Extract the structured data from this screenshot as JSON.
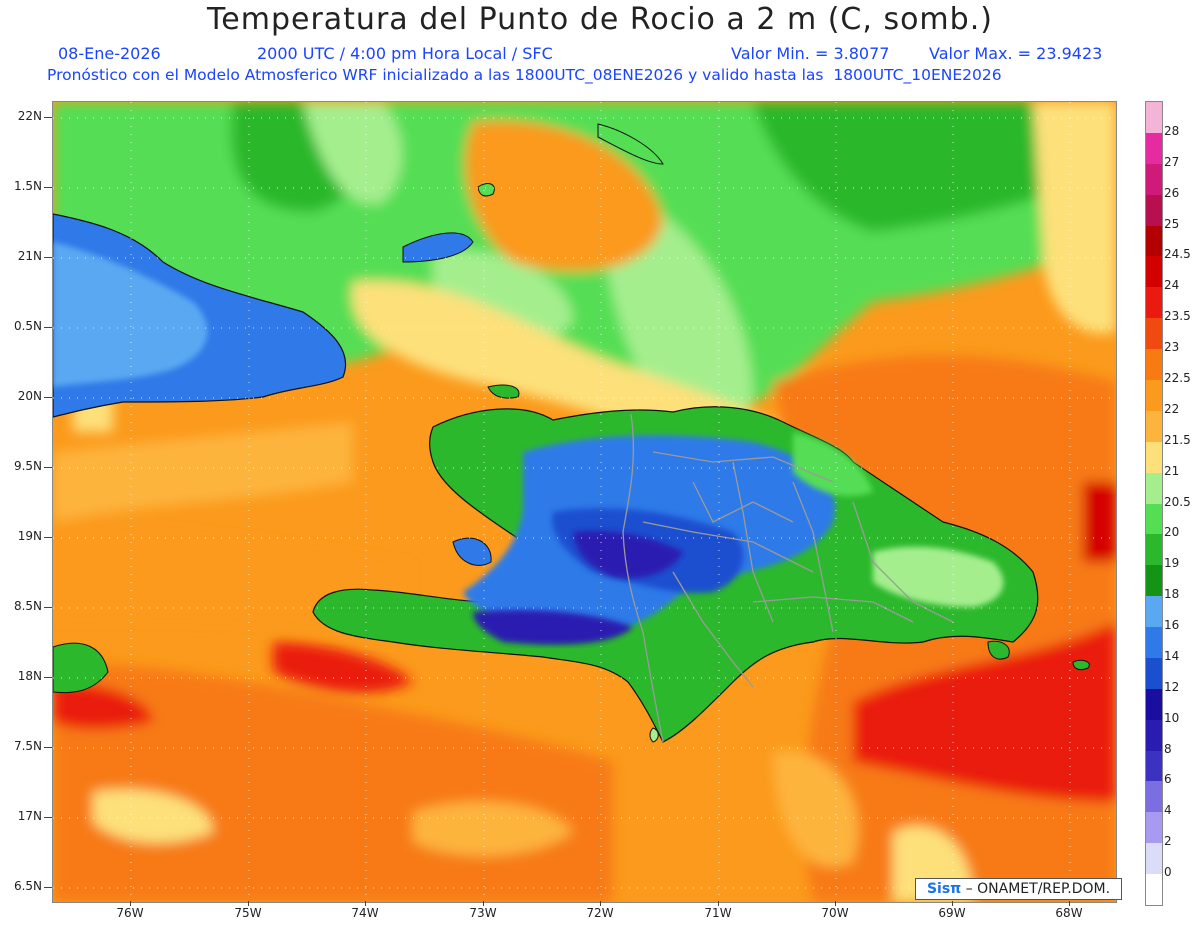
{
  "header": {
    "title": "Temperatura del Punto de Rocio a 2 m (C, somb.)",
    "date": "08-Ene-2026",
    "time_info": "2000 UTC / 4:00 pm Hora Local / SFC",
    "value_min": "Valor Min. = 3.8077",
    "value_max": "Valor Max. = 23.9423",
    "forecast_note": "Pronóstico con el Modelo Atmosferico WRF inicializado a las 1800UTC_08ENE2026 y valido hasta las  1800UTC_10ENE2026"
  },
  "axes": {
    "lat_labels": [
      "22N",
      "1.5N",
      "21N",
      "0.5N",
      "20N",
      "9.5N",
      "19N",
      "8.5N",
      "18N",
      "7.5N",
      "17N",
      "6.5N"
    ],
    "lon_labels": [
      "76W",
      "75W",
      "74W",
      "73W",
      "72W",
      "71W",
      "70W",
      "69W",
      "68W"
    ]
  },
  "colorbar": {
    "labels": [
      "28",
      "27",
      "26",
      "25",
      "24.5",
      "24",
      "23.5",
      "23",
      "22.5",
      "22",
      "21.5",
      "21",
      "20.5",
      "20",
      "19",
      "18",
      "16",
      "14",
      "12",
      "10",
      "8",
      "6",
      "4",
      "2",
      "0"
    ],
    "colors": [
      "#f4b4d8",
      "#e62ba0",
      "#d01a7a",
      "#b80f50",
      "#b30000",
      "#d40000",
      "#ea1a10",
      "#f04a10",
      "#f77a12",
      "#fb9a1c",
      "#fdb43c",
      "#fde07a",
      "#a4ee8e",
      "#54de54",
      "#2cb82c",
      "#149414",
      "#5aa8f2",
      "#2f7ae8",
      "#1a50d0",
      "#1a0ea0",
      "#2a1cb0",
      "#3c32c0",
      "#7a6ee0",
      "#a89af0",
      "#dadcf8",
      "#ffffff"
    ]
  },
  "credit": {
    "brand": "Sisπ",
    "text": "– ONAMET/REP.DOM."
  }
}
